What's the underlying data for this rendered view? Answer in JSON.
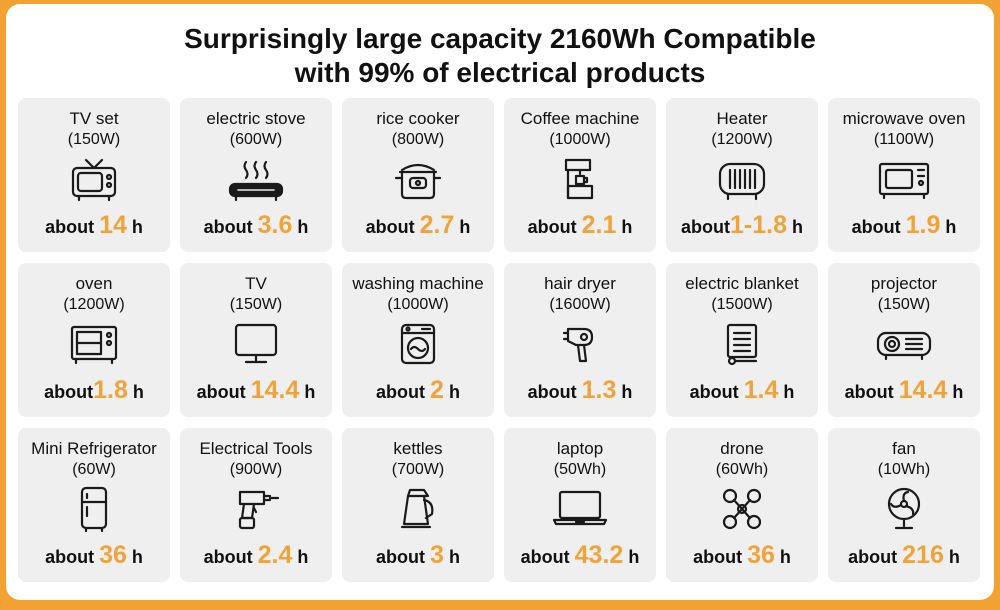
{
  "title": {
    "line1": "Surprisingly large capacity 2160Wh Compatible",
    "line2": "with 99% of electrical products"
  },
  "accent_color": "#f0a33a",
  "frame_color": "#f2a233",
  "cards": [
    {
      "name": "TV set",
      "watt": "(150W)",
      "prefix": "about ",
      "hours": "14",
      "suffix": " h",
      "icon": "retro-tv-icon"
    },
    {
      "name": "electric stove",
      "watt": "(600W)",
      "prefix": "about ",
      "hours": "3.6",
      "suffix": " h",
      "icon": "electric-stove-icon"
    },
    {
      "name": "rice cooker",
      "watt": "(800W)",
      "prefix": "about ",
      "hours": "2.7",
      "suffix": " h",
      "icon": "rice-cooker-icon"
    },
    {
      "name": "Coffee machine",
      "watt": "(1000W)",
      "prefix": "about ",
      "hours": "2.1",
      "suffix": " h",
      "icon": "coffee-machine-icon"
    },
    {
      "name": "Heater",
      "watt": "(1200W)",
      "prefix": "about",
      "hours": "1-1.8",
      "suffix": " h",
      "icon": "heater-icon"
    },
    {
      "name": "microwave oven",
      "watt": "(1100W)",
      "prefix": "about ",
      "hours": "1.9",
      "suffix": " h",
      "icon": "microwave-icon"
    },
    {
      "name": "oven",
      "watt": "(1200W)",
      "prefix": "about",
      "hours": "1.8",
      "suffix": " h",
      "icon": "oven-icon"
    },
    {
      "name": "TV",
      "watt": "(150W)",
      "prefix": "about ",
      "hours": "14.4",
      "suffix": " h",
      "icon": "tv-monitor-icon"
    },
    {
      "name": "washing machine",
      "watt": "(1000W)",
      "prefix": "about ",
      "hours": "2",
      "suffix": " h",
      "icon": "washing-machine-icon"
    },
    {
      "name": "hair dryer",
      "watt": "(1600W)",
      "prefix": "about ",
      "hours": "1.3",
      "suffix": " h",
      "icon": "hair-dryer-icon"
    },
    {
      "name": "electric blanket",
      "watt": "(1500W)",
      "prefix": "about ",
      "hours": "1.4",
      "suffix": " h",
      "icon": "electric-blanket-icon"
    },
    {
      "name": "projector",
      "watt": "(150W)",
      "prefix": "about ",
      "hours": "14.4",
      "suffix": " h",
      "icon": "projector-icon"
    },
    {
      "name": "Mini Refrigerator",
      "watt": "(60W)",
      "prefix": "about ",
      "hours": "36",
      "suffix": " h",
      "icon": "mini-fridge-icon"
    },
    {
      "name": "Electrical Tools",
      "watt": "(900W)",
      "prefix": "about ",
      "hours": "2.4",
      "suffix": " h",
      "icon": "power-drill-icon"
    },
    {
      "name": "kettles",
      "watt": "(700W)",
      "prefix": "about ",
      "hours": "3",
      "suffix": " h",
      "icon": "kettle-icon"
    },
    {
      "name": "laptop",
      "watt": "(50Wh)",
      "prefix": "about ",
      "hours": "43.2",
      "suffix": " h",
      "icon": "laptop-icon"
    },
    {
      "name": "drone",
      "watt": "(60Wh)",
      "prefix": "about ",
      "hours": "36",
      "suffix": " h",
      "icon": "drone-icon"
    },
    {
      "name": "fan",
      "watt": "(10Wh)",
      "prefix": "about ",
      "hours": "216",
      "suffix": " h",
      "icon": "fan-icon"
    }
  ]
}
